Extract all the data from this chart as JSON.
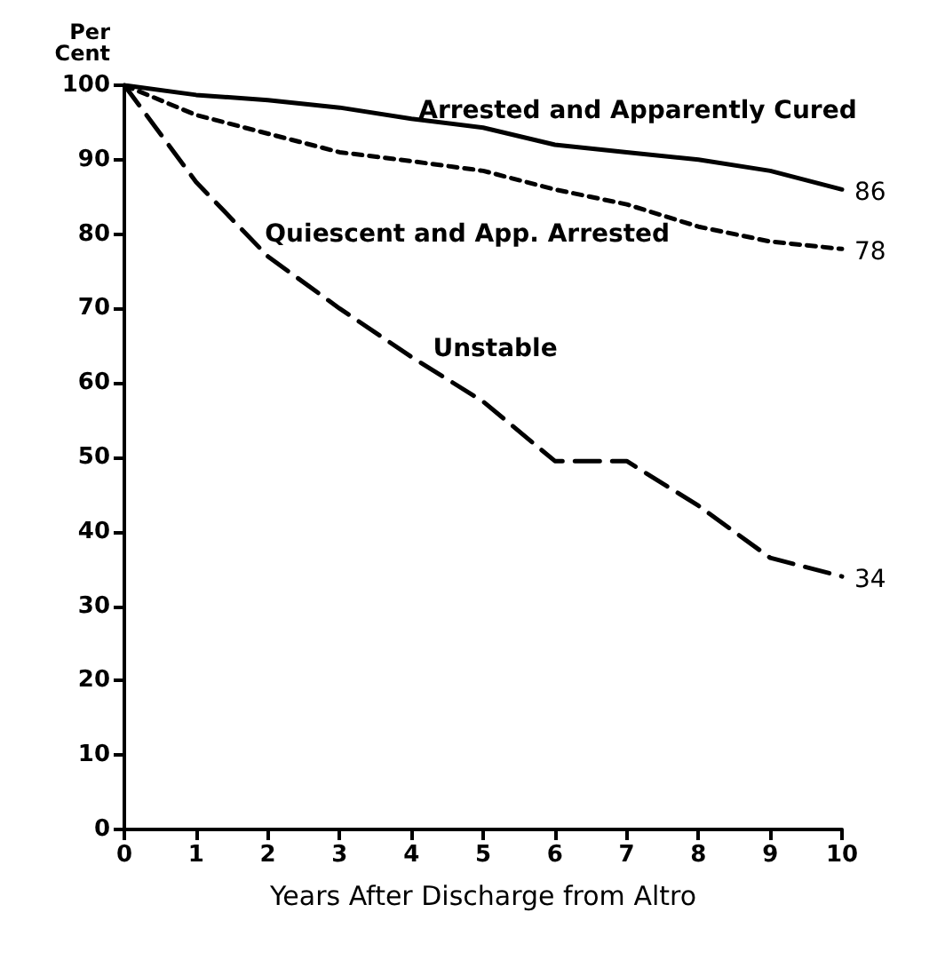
{
  "chart_data": {
    "type": "line",
    "xlabel": "Years After Discharge from Altro",
    "ylabel": "Per Cent",
    "x": [
      0,
      1,
      2,
      3,
      4,
      5,
      6,
      7,
      8,
      9,
      10
    ],
    "series": [
      {
        "name": "Arrested and Apparently Cured",
        "color": "#000000",
        "line_style": "solid",
        "values": [
          100,
          98.7,
          98,
          97,
          95.5,
          94.3,
          92,
          91,
          90,
          88.5,
          86
        ],
        "value_labels": [
          null,
          null,
          null,
          null,
          null,
          null,
          null,
          null,
          null,
          null,
          "86"
        ]
      },
      {
        "name": "Quiescent and App. Arrested",
        "color": "#000000",
        "line_style": "dotted",
        "values": [
          100,
          96,
          93.5,
          91,
          89.8,
          88.5,
          86,
          84,
          81,
          79,
          78
        ],
        "value_labels": [
          null,
          null,
          null,
          null,
          null,
          null,
          null,
          null,
          null,
          null,
          "78"
        ]
      },
      {
        "name": "Unstable",
        "color": "#000000",
        "line_style": "dashed",
        "values": [
          100,
          87,
          77,
          70,
          63.5,
          57.5,
          49.5,
          49.5,
          43.5,
          36.5,
          34
        ],
        "value_labels": [
          null,
          null,
          null,
          null,
          null,
          null,
          null,
          null,
          null,
          null,
          "34"
        ]
      }
    ],
    "xlim": [
      0,
      10
    ],
    "xticks": [
      0,
      1,
      2,
      3,
      4,
      5,
      6,
      7,
      8,
      9,
      10
    ],
    "ylim": [
      0,
      100
    ],
    "yticks": [
      0,
      10,
      20,
      30,
      40,
      50,
      60,
      70,
      80,
      90,
      100
    ],
    "grid": false,
    "legend": false,
    "marker": "none"
  }
}
